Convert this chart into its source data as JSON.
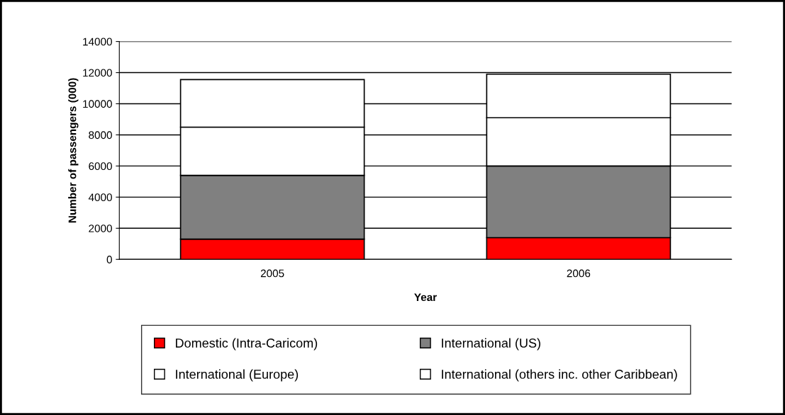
{
  "chart_data": {
    "type": "bar",
    "stacked": true,
    "xlabel": "Year",
    "ylabel": "Number of passengers (000)",
    "categories": [
      "2005",
      "2006"
    ],
    "series": [
      {
        "name": "Domestic (Intra-Caricom)",
        "color": "#ff0000",
        "values": [
          1300,
          1400
        ]
      },
      {
        "name": "International (US)",
        "color": "#808080",
        "values": [
          4100,
          4600
        ]
      },
      {
        "name": "International (Europe)",
        "color": "#ffffff",
        "values": [
          3100,
          3100
        ]
      },
      {
        "name": "International (others inc. other Caribbean)",
        "color": "#ffffff",
        "values": [
          3050,
          2800
        ]
      }
    ],
    "ylim": [
      0,
      14000
    ],
    "yticks": [
      0,
      2000,
      4000,
      6000,
      8000,
      10000,
      12000,
      14000
    ],
    "grid": "y",
    "legend": "bottom"
  }
}
